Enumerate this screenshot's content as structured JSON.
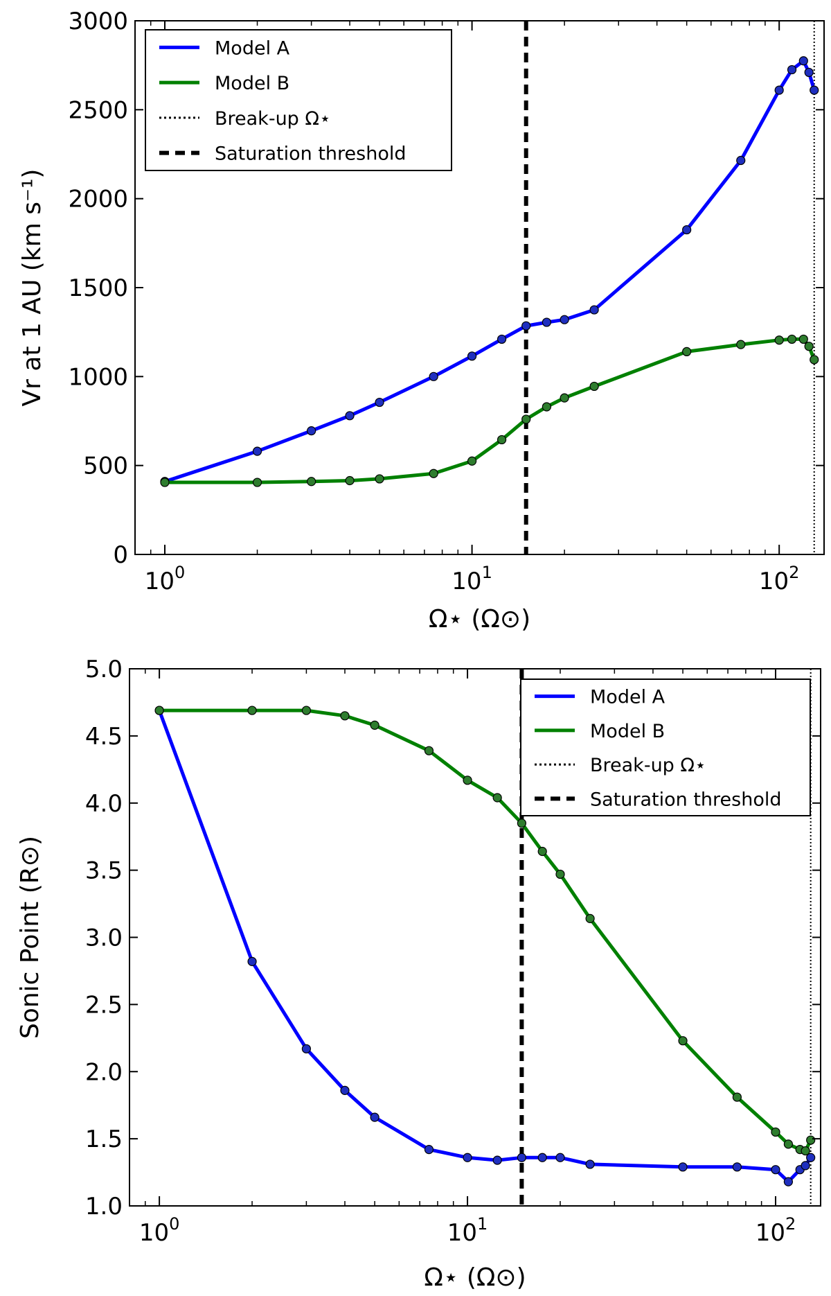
{
  "colors": {
    "model_a": "#0000ff",
    "model_b": "#008000",
    "marker_a": "#1f2fbf",
    "marker_b": "#2e7d2e",
    "refline": "#000000"
  },
  "chart_data": [
    {
      "type": "line",
      "xscale": "log",
      "xlim": [
        0.8,
        140
      ],
      "ylim": [
        0,
        3000
      ],
      "xlabel": "Ω⋆ (Ω⊙)",
      "ylabel": "Vr at 1 AU (km s⁻¹)",
      "xticks": [
        1,
        10,
        100
      ],
      "xtick_labels": [
        {
          "base": "10",
          "exp": "0"
        },
        {
          "base": "10",
          "exp": "1"
        },
        {
          "base": "10",
          "exp": "2"
        }
      ],
      "yticks": [
        0,
        500,
        1000,
        1500,
        2000,
        2500,
        3000
      ],
      "ytick_labels": [
        "0",
        "500",
        "1000",
        "1500",
        "2000",
        "2500",
        "3000"
      ],
      "legend_position": "top-left",
      "legend": [
        {
          "label": "Model A",
          "style": "solid-blue"
        },
        {
          "label": "Model B",
          "style": "solid-green"
        },
        {
          "label": "Break-up Ω⋆",
          "style": "dotted"
        },
        {
          "label": "Saturation threshold",
          "style": "dashed"
        }
      ],
      "vlines": {
        "saturation_threshold": 15,
        "break_up": 130
      },
      "series": [
        {
          "name": "Model A",
          "x": [
            1,
            2,
            3,
            4,
            5,
            7.5,
            10,
            12.5,
            15,
            17.5,
            20,
            25,
            50,
            75,
            100,
            110,
            120,
            125,
            130
          ],
          "values": [
            410,
            580,
            695,
            780,
            855,
            1000,
            1115,
            1210,
            1285,
            1305,
            1320,
            1375,
            1825,
            2215,
            2610,
            2725,
            2775,
            2710,
            2610
          ]
        },
        {
          "name": "Model B",
          "x": [
            1,
            2,
            3,
            4,
            5,
            7.5,
            10,
            12.5,
            15,
            17.5,
            20,
            25,
            50,
            75,
            100,
            110,
            120,
            125,
            130
          ],
          "values": [
            405,
            405,
            410,
            415,
            425,
            455,
            525,
            645,
            760,
            830,
            880,
            945,
            1140,
            1180,
            1205,
            1210,
            1210,
            1170,
            1095
          ]
        }
      ]
    },
    {
      "type": "line",
      "xscale": "log",
      "xlim": [
        0.8,
        140
      ],
      "ylim": [
        1.0,
        5.0
      ],
      "xlabel": "Ω⋆ (Ω⊙)",
      "ylabel": "Sonic Point (R⊙)",
      "xticks": [
        1,
        10,
        100
      ],
      "xtick_labels": [
        {
          "base": "10",
          "exp": "0"
        },
        {
          "base": "10",
          "exp": "1"
        },
        {
          "base": "10",
          "exp": "2"
        }
      ],
      "yticks": [
        1.0,
        1.5,
        2.0,
        2.5,
        3.0,
        3.5,
        4.0,
        4.5,
        5.0
      ],
      "ytick_labels": [
        "1.0",
        "1.5",
        "2.0",
        "2.5",
        "3.0",
        "3.5",
        "4.0",
        "4.5",
        "5.0"
      ],
      "legend_position": "top-right",
      "legend": [
        {
          "label": "Model A",
          "style": "solid-blue"
        },
        {
          "label": "Model B",
          "style": "solid-green"
        },
        {
          "label": "Break-up Ω⋆",
          "style": "dotted"
        },
        {
          "label": "Saturation threshold",
          "style": "dashed"
        }
      ],
      "vlines": {
        "saturation_threshold": 15,
        "break_up": 130
      },
      "series": [
        {
          "name": "Model A",
          "x": [
            1,
            2,
            3,
            4,
            5,
            7.5,
            10,
            12.5,
            15,
            17.5,
            20,
            25,
            50,
            75,
            100,
            110,
            120,
            125,
            130
          ],
          "values": [
            4.69,
            2.82,
            2.17,
            1.86,
            1.66,
            1.42,
            1.36,
            1.34,
            1.36,
            1.36,
            1.36,
            1.31,
            1.29,
            1.29,
            1.27,
            1.18,
            1.27,
            1.3,
            1.36
          ]
        },
        {
          "name": "Model B",
          "x": [
            1,
            2,
            3,
            4,
            5,
            7.5,
            10,
            12.5,
            15,
            17.5,
            20,
            25,
            50,
            75,
            100,
            110,
            120,
            125,
            130
          ],
          "values": [
            4.69,
            4.69,
            4.69,
            4.65,
            4.58,
            4.39,
            4.17,
            4.04,
            3.85,
            3.64,
            3.47,
            3.14,
            2.23,
            1.81,
            1.55,
            1.46,
            1.42,
            1.41,
            1.49
          ]
        }
      ]
    }
  ]
}
